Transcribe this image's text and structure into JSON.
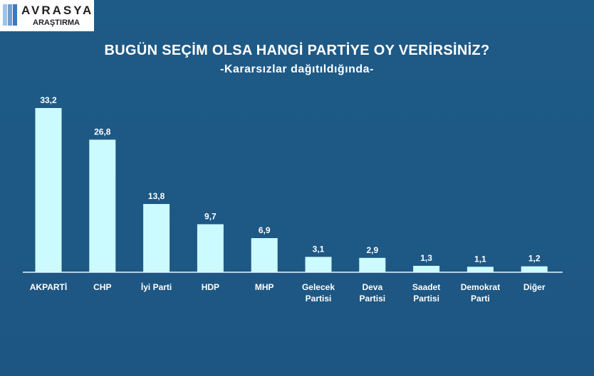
{
  "logo": {
    "brand": "AVRASYA",
    "sub": "ARAŞTIRMA"
  },
  "chart_data": {
    "type": "bar",
    "title": "BUGÜN SEÇİM OLSA HANGİ PARTİYE OY VERİRSİNİZ?",
    "subtitle": "-Kararsızlar dağıtıldığında-",
    "categories": [
      [
        "AKPARTİ"
      ],
      [
        "CHP"
      ],
      [
        "İyi Parti"
      ],
      [
        "HDP"
      ],
      [
        "MHP"
      ],
      [
        "Gelecek",
        "Partisi"
      ],
      [
        "Deva",
        "Partisi"
      ],
      [
        "Saadet",
        "Partisi"
      ],
      [
        "Demokrat",
        "Parti"
      ],
      [
        "Diğer"
      ]
    ],
    "values": [
      33.2,
      26.8,
      13.8,
      9.7,
      6.9,
      3.1,
      2.9,
      1.3,
      1.1,
      1.2
    ],
    "value_labels": [
      "33,2",
      "26,8",
      "13,8",
      "9,7",
      "6,9",
      "3,1",
      "2,9",
      "1,3",
      "1,1",
      "1,2"
    ],
    "ylim": [
      0,
      33.2
    ],
    "grid": false,
    "bar_color": "#ccfbff",
    "background_color": "#1f5a86"
  }
}
